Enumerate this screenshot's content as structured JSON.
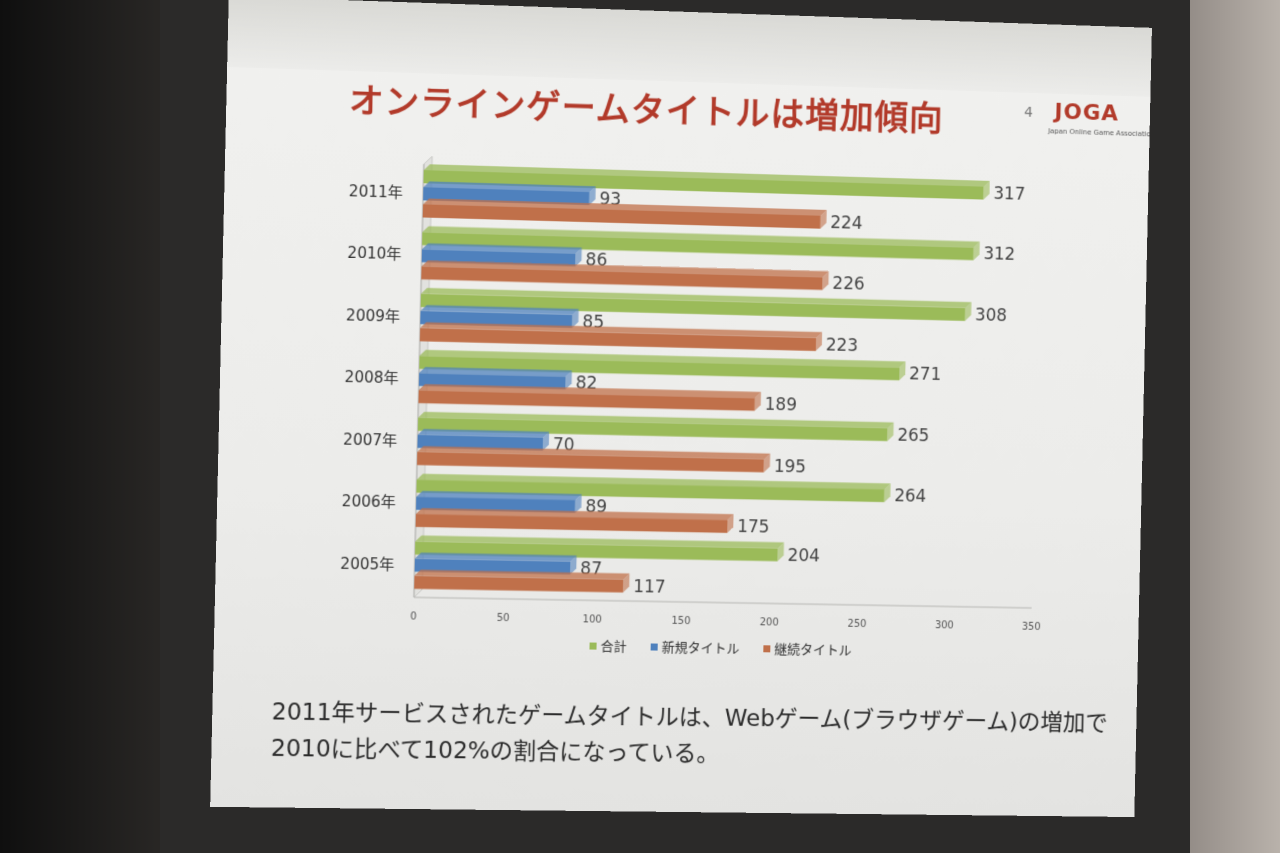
{
  "slide": {
    "title": "オンラインゲームタイトルは増加傾向",
    "page_number": "4",
    "logo": {
      "text": "JOGA",
      "subtext": "Japan Online Game Association"
    },
    "caption_lines": [
      "2011年サービスされたゲームタイトルは、Webゲーム(ブラウザゲーム)の増加で",
      "2010に比べて102%の割合になっている。"
    ]
  },
  "chart_data": {
    "type": "bar",
    "orientation": "horizontal",
    "categories": [
      "2005年",
      "2006年",
      "2007年",
      "2008年",
      "2009年",
      "2010年",
      "2011年"
    ],
    "series": [
      {
        "name": "合計",
        "color": "#9bbb59",
        "values": [
          204,
          264,
          265,
          271,
          308,
          312,
          317
        ]
      },
      {
        "name": "新規タイトル",
        "color": "#4f81bd",
        "values": [
          87,
          89,
          70,
          82,
          85,
          86,
          93
        ]
      },
      {
        "name": "継続タイトル",
        "color": "#c0704a",
        "values": [
          117,
          175,
          195,
          189,
          223,
          226,
          224
        ]
      }
    ],
    "xlim": [
      0,
      350
    ],
    "xticks": [
      0,
      50,
      100,
      150,
      200,
      250,
      300,
      350
    ],
    "data_labels": true,
    "legend": "bottom"
  }
}
